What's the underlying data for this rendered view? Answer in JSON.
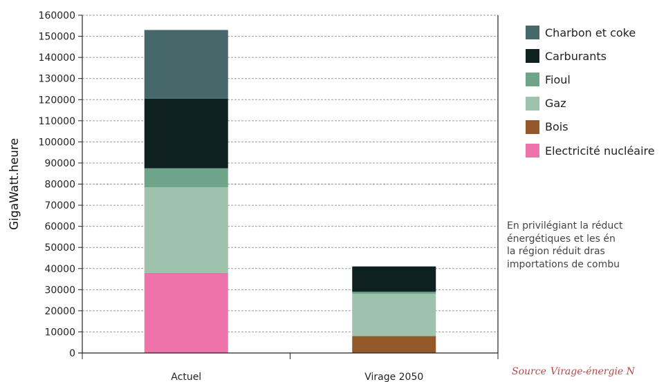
{
  "chart_data": {
    "type": "bar",
    "stacked": true,
    "categories": [
      "Actuel",
      "Virage 2050"
    ],
    "ylabel": "GigaWatt.heure",
    "xlabel": "",
    "ylim": [
      0,
      160000
    ],
    "yticks": [
      0,
      10000,
      20000,
      30000,
      40000,
      50000,
      60000,
      70000,
      80000,
      90000,
      100000,
      110000,
      120000,
      130000,
      140000,
      150000,
      160000
    ],
    "grid": true,
    "legend_position": "right",
    "series": [
      {
        "name": "Electricité nucléaire",
        "color": "#ee73aa",
        "values": [
          38000,
          0
        ]
      },
      {
        "name": "Bois",
        "color": "#94582a",
        "values": [
          0,
          8000
        ]
      },
      {
        "name": "Gaz",
        "color": "#9ec2ac",
        "values": [
          40500,
          20000
        ]
      },
      {
        "name": "Fioul",
        "color": "#6ea589",
        "values": [
          9000,
          1000
        ]
      },
      {
        "name": "Carburants",
        "color": "#0f2021",
        "values": [
          33000,
          12000
        ]
      },
      {
        "name": "Charbon et coke",
        "color": "#46686a",
        "values": [
          32500,
          0
        ]
      }
    ]
  },
  "legend": {
    "items": [
      {
        "label": "Charbon et coke",
        "color": "#46686a"
      },
      {
        "label": "Carburants",
        "color": "#0f2021"
      },
      {
        "label": "Fioul",
        "color": "#6ea589"
      },
      {
        "label": "Gaz",
        "color": "#9ec2ac"
      },
      {
        "label": "Bois",
        "color": "#94582a"
      },
      {
        "label": "Electricité nucléaire",
        "color": "#ee73aa"
      }
    ]
  },
  "note": {
    "lines": [
      "En privilégiant la réduct",
      "énergétiques et les én",
      "la région réduit dras",
      "importations de combu"
    ]
  },
  "source": {
    "label": "Source",
    "text": "Virage-énergie N"
  }
}
